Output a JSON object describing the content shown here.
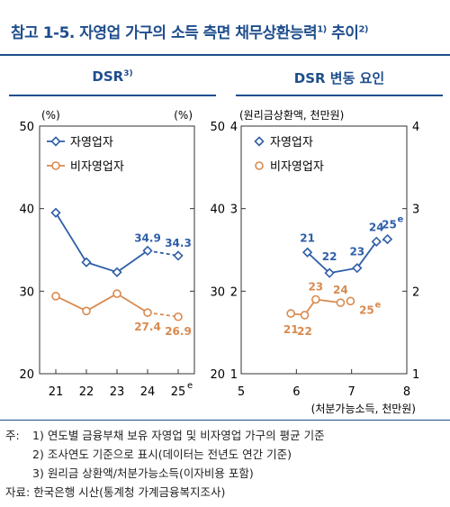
{
  "title": {
    "text": "참고 1-5. 자영업 가구의 소득 측면 채무상환능력",
    "sup1": "1)",
    "mid": " 추이",
    "sup2": "2)"
  },
  "panels": {
    "left_title": "DSR",
    "left_title_sup": "3)",
    "right_title": "DSR 변동 요인"
  },
  "colors": {
    "self_employed": "#2f5fa7",
    "non_self_employed": "#d98a4f",
    "accent": "#1f4e8c"
  },
  "chart_data": [
    {
      "type": "line",
      "title": "DSR",
      "unit_left": "(%)",
      "unit_right": "(%)",
      "categories": [
        "21",
        "22",
        "23",
        "24",
        "25"
      ],
      "category_suffix": {
        "index": 4,
        "text": "e"
      },
      "ylim": [
        20,
        50
      ],
      "yticks": [
        20,
        30,
        40,
        50
      ],
      "legend_placement": "top-left",
      "series": [
        {
          "name": "자영업자",
          "values": [
            39.5,
            33.5,
            32.3,
            34.9,
            34.3
          ],
          "labels": [
            null,
            null,
            null,
            "34.9",
            "34.3"
          ],
          "dashed_last_segment": true
        },
        {
          "name": "비자영업자",
          "values": [
            29.4,
            27.6,
            29.7,
            27.4,
            26.9
          ],
          "labels": [
            null,
            null,
            null,
            "27.4",
            "26.9"
          ],
          "dashed_last_segment": true
        }
      ]
    },
    {
      "type": "scatter",
      "title": "DSR 변동 요인",
      "y_unit": "(원리금상환액, 천만원)",
      "x_unit": "(처분가능소득, 천만원)",
      "xlim": [
        5,
        8
      ],
      "xticks": [
        5,
        6,
        7,
        8
      ],
      "ylim": [
        1,
        4
      ],
      "yticks": [
        1,
        2,
        3,
        4
      ],
      "left_axis_extra_ticks": [
        "20",
        "30",
        "40",
        "50"
      ],
      "legend_placement": "top-left",
      "series": [
        {
          "name": "자영업자",
          "connected": true,
          "dashed_last_segment": true,
          "points": [
            [
              6.2,
              2.47
            ],
            [
              6.6,
              2.22
            ],
            [
              7.1,
              2.28
            ],
            [
              7.45,
              2.6
            ],
            [
              7.65,
              2.63
            ]
          ],
          "labels": [
            "21",
            "22",
            "23",
            "24",
            "25"
          ]
        },
        {
          "name": "비자영업자",
          "connected": true,
          "dashed_last_segment": true,
          "points": [
            [
              5.9,
              1.73
            ],
            [
              6.15,
              1.71
            ],
            [
              6.35,
              1.9
            ],
            [
              6.8,
              1.86
            ],
            [
              6.98,
              1.88
            ]
          ],
          "labels": [
            "21",
            "22",
            "23",
            "24",
            "25"
          ]
        }
      ],
      "label_suffix": {
        "series": 0,
        "index": 4,
        "text": "e"
      },
      "label_suffix_2": {
        "series": 1,
        "index": 4,
        "text": "e"
      }
    }
  ],
  "notes": [
    {
      "prefix": "주:",
      "num": "1)",
      "text": "연도별 금융부채 보유 자영업 및 비자영업 가구의 평균 기준"
    },
    {
      "prefix": "",
      "num": "2)",
      "text": "조사연도 기준으로 표시(데이터는 전년도 연간 기준)"
    },
    {
      "prefix": "",
      "num": "3)",
      "text": "원리금 상환액/처분가능소득(이자비용 포함)"
    }
  ],
  "source": {
    "prefix": "자료:",
    "text": "한국은행 시산(통계청 가계금융복지조사)"
  }
}
